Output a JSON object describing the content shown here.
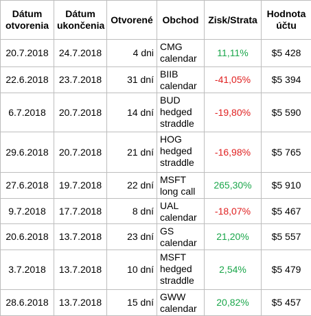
{
  "table": {
    "headers": [
      [
        "Dátum",
        "otvorenia"
      ],
      [
        "Dátum",
        "ukončenia"
      ],
      [
        "Otvorené"
      ],
      [
        "Obchod"
      ],
      [
        "Zisk/Strata"
      ],
      [
        "Hodnota",
        "účtu"
      ]
    ],
    "rows": [
      [
        "20.7.2018",
        "24.7.2018",
        "4 dni",
        [
          "CMG",
          "calendar"
        ],
        "11,11%",
        "$5 428"
      ],
      [
        "22.6.2018",
        "23.7.2018",
        "31 dní",
        [
          "BIIB",
          "calendar"
        ],
        "-41,05%",
        "$5 394"
      ],
      [
        "6.7.2018",
        "20.7.2018",
        "14 dní",
        [
          "BUD",
          "hedged",
          "straddle"
        ],
        "-19,80%",
        "$5 590"
      ],
      [
        "29.6.2018",
        "20.7.2018",
        "21 dní",
        [
          "HOG",
          "hedged",
          "straddle"
        ],
        "-16,98%",
        "$5 765"
      ],
      [
        "27.6.2018",
        "19.7.2018",
        "22 dní",
        [
          "MSFT",
          "long call"
        ],
        "265,30%",
        "$5 910"
      ],
      [
        "9.7.2018",
        "17.7.2018",
        "8 dní",
        [
          "UAL",
          "calendar"
        ],
        "-18,07%",
        "$5 467"
      ],
      [
        "20.6.2018",
        "13.7.2018",
        "23 dní",
        [
          "GS",
          "calendar"
        ],
        "21,20%",
        "$5 557"
      ],
      [
        "3.7.2018",
        "13.7.2018",
        "10 dní",
        [
          "MSFT",
          "hedged",
          "straddle"
        ],
        "2,54%",
        "$5 479"
      ],
      [
        "28.6.2018",
        "13.7.2018",
        "15 dní",
        [
          "GWW",
          "calendar"
        ],
        "20,82%",
        "$5 457"
      ]
    ]
  }
}
